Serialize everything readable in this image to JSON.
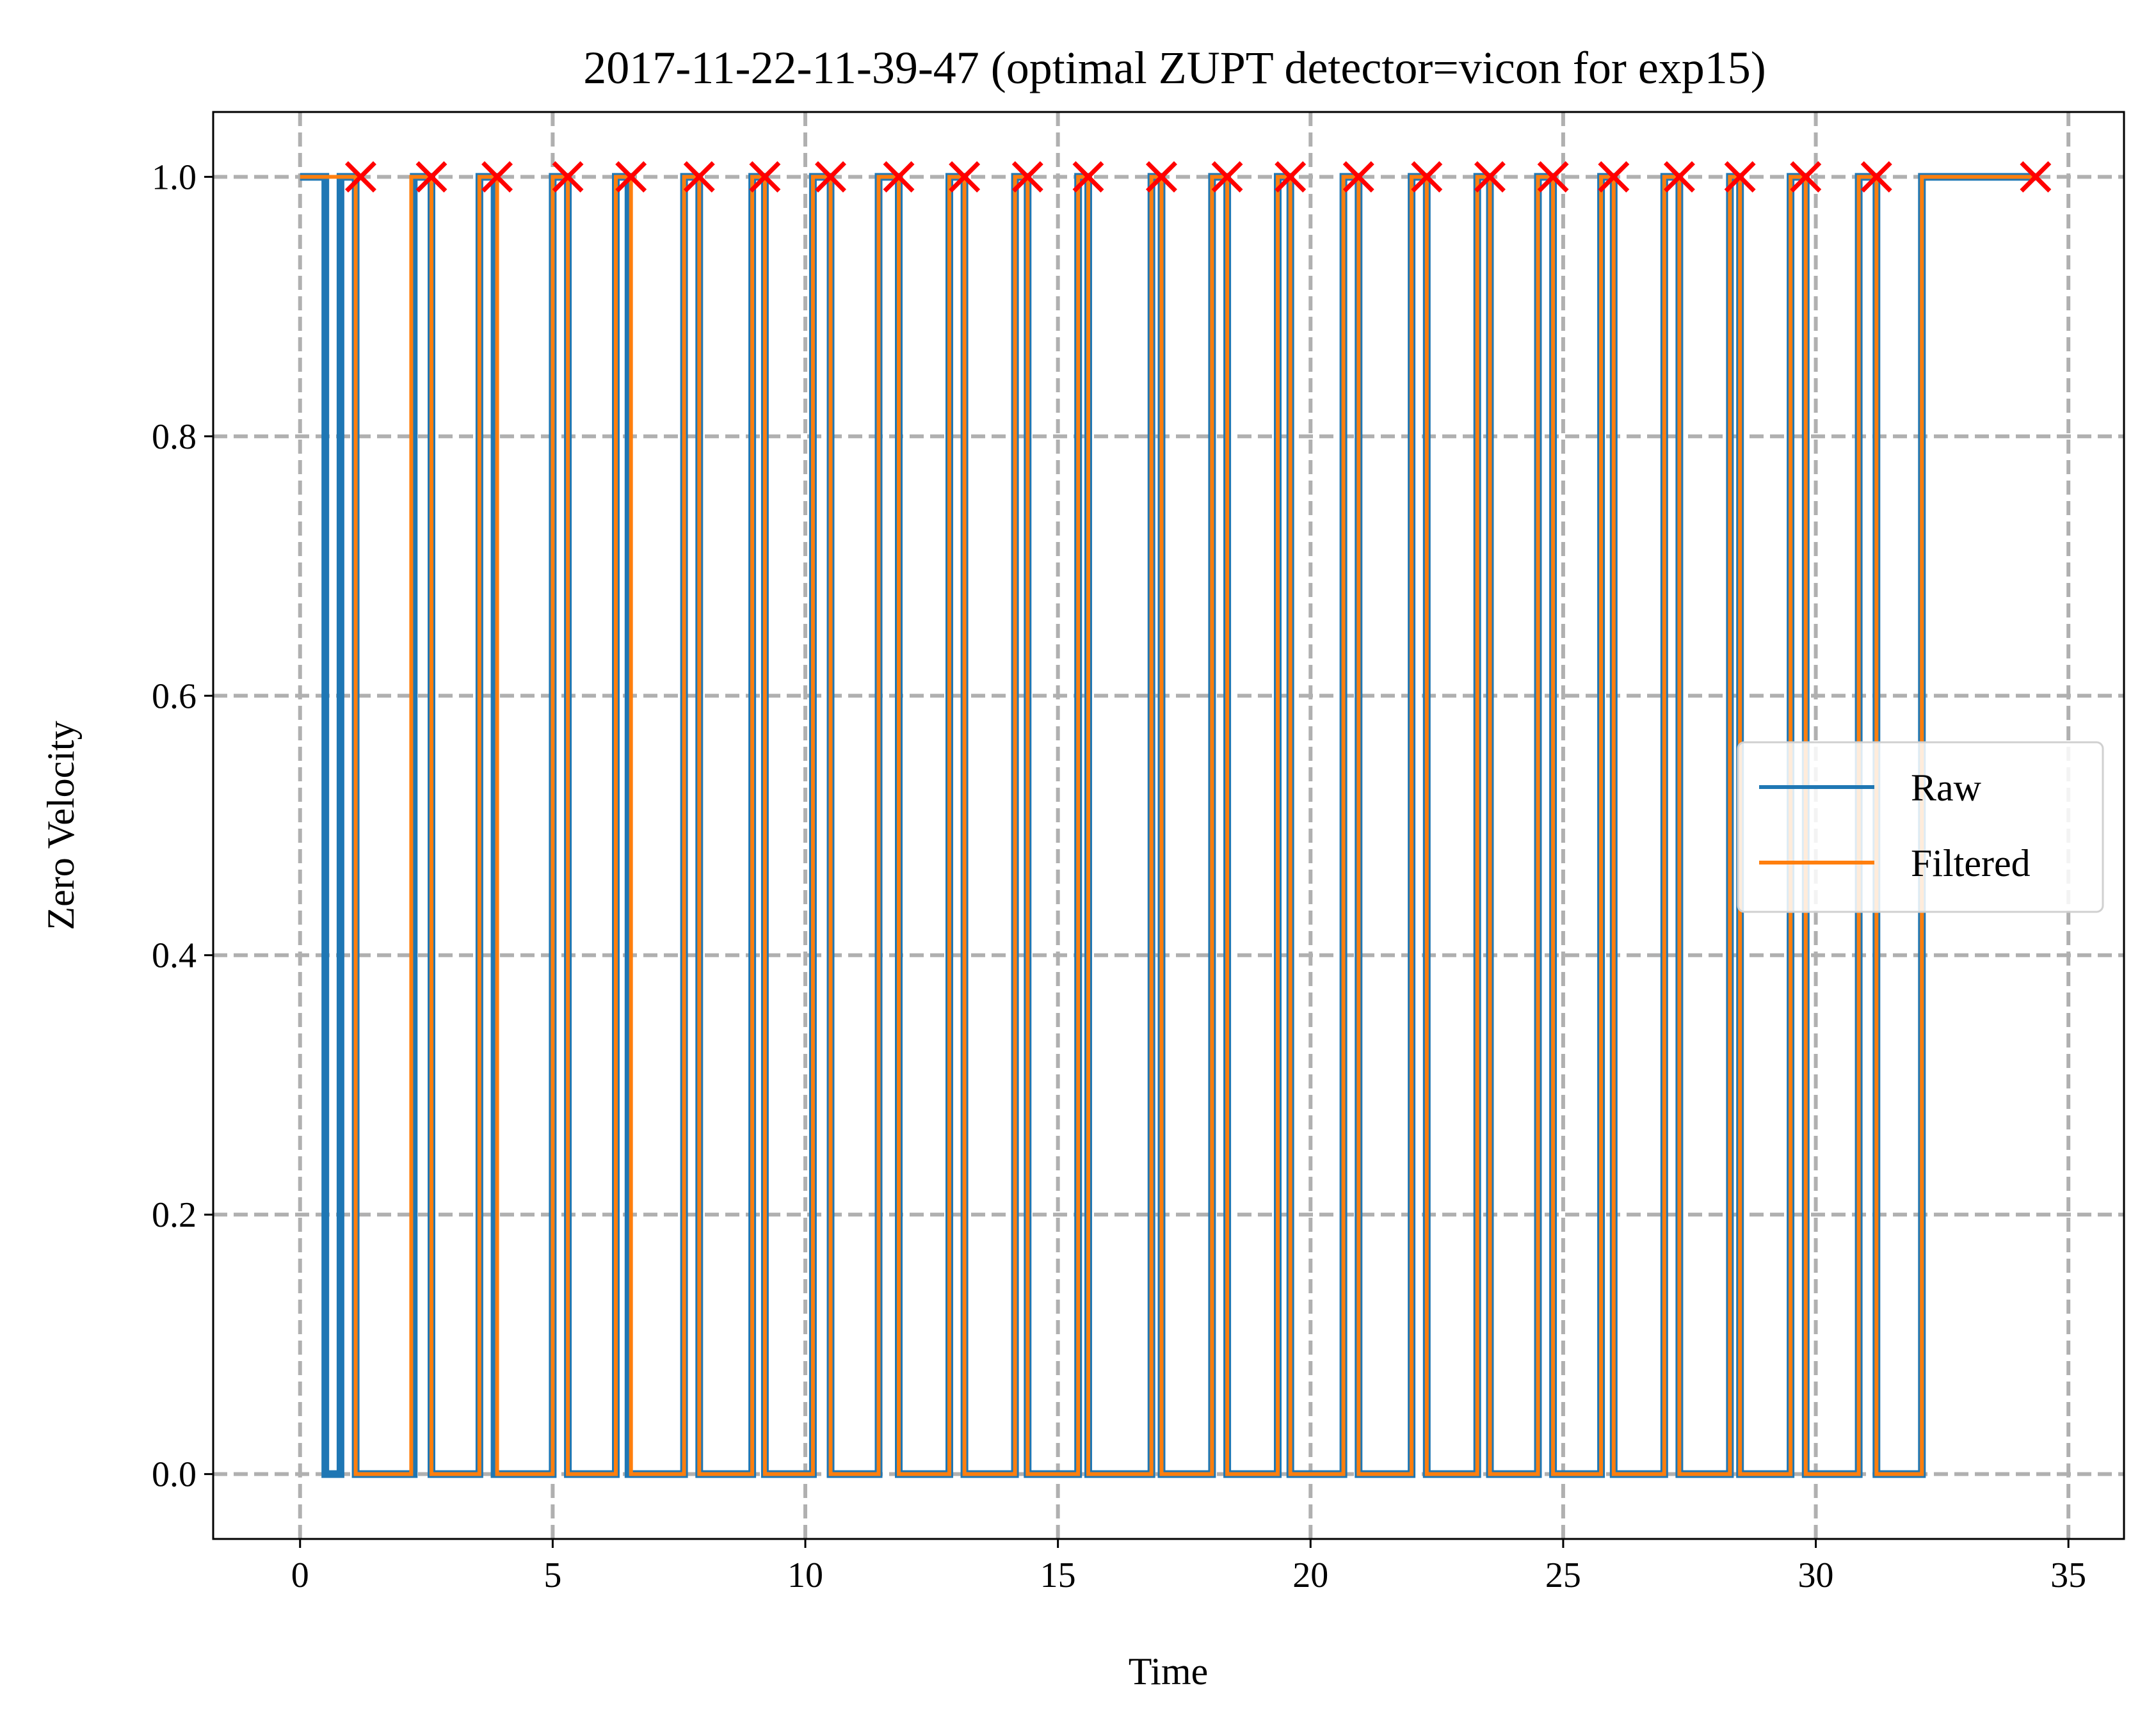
{
  "colors": {
    "raw": "#1f77b4",
    "filtered": "#ff7f0e",
    "marker": "#ff0000",
    "grid": "#b0b0b0",
    "axes": "#000000",
    "background": "#ffffff"
  },
  "chart_data": {
    "type": "line",
    "title": "2017-11-22-11-39-47 (optimal ZUPT detector=vicon for exp15)",
    "xlabel": "Time",
    "ylabel": "Zero Velocity",
    "xlim": [
      -1.72,
      36.1
    ],
    "ylim": [
      -0.05,
      1.05
    ],
    "x_ticks": [
      0,
      5,
      10,
      15,
      20,
      25,
      30,
      35
    ],
    "x_tick_labels": [
      "0",
      "5",
      "10",
      "15",
      "20",
      "25",
      "30",
      "35"
    ],
    "y_ticks": [
      0.0,
      0.2,
      0.4,
      0.6,
      0.8,
      1.0
    ],
    "y_tick_labels": [
      "0.0",
      "0.2",
      "0.4",
      "0.6",
      "0.8",
      "1.0"
    ],
    "grid": true,
    "grid_style": "dashed",
    "legend_position": "center-right",
    "series": [
      {
        "name": "Raw",
        "color_key": "raw",
        "x": [
          0.0,
          0.5,
          0.5,
          0.8,
          0.8,
          1.1,
          1.1,
          2.25,
          2.25,
          2.6,
          2.6,
          3.55,
          3.55,
          3.85,
          3.85,
          3.9,
          3.9,
          5.0,
          5.0,
          5.3,
          5.3,
          6.25,
          6.25,
          6.5,
          6.5,
          7.6,
          7.6,
          7.9,
          7.9,
          8.95,
          8.95,
          9.2,
          9.2,
          10.15,
          10.15,
          10.5,
          10.5,
          11.45,
          11.45,
          11.85,
          11.85,
          12.85,
          12.85,
          13.15,
          13.15,
          14.15,
          14.15,
          14.4,
          14.4,
          15.4,
          15.4,
          15.6,
          15.6,
          16.85,
          16.85,
          17.05,
          17.05,
          18.05,
          18.05,
          18.35,
          18.35,
          19.35,
          19.35,
          19.6,
          19.6,
          20.65,
          20.65,
          20.95,
          20.95,
          22.0,
          22.0,
          22.3,
          22.3,
          23.3,
          23.3,
          23.55,
          23.55,
          24.5,
          24.5,
          24.8,
          24.8,
          25.75,
          25.75,
          26.0,
          26.0,
          27.0,
          27.0,
          27.3,
          27.3,
          28.3,
          28.3,
          28.5,
          28.5,
          29.5,
          29.5,
          29.8,
          29.8,
          30.85,
          30.85,
          31.2,
          31.2,
          32.1,
          32.1,
          34.35
        ],
        "y": [
          1,
          1,
          0,
          0,
          1,
          1,
          0,
          0,
          1,
          1,
          0,
          0,
          1,
          1,
          0,
          0,
          0,
          0,
          1,
          1,
          0,
          0,
          1,
          1,
          0,
          0,
          1,
          1,
          0,
          0,
          1,
          1,
          0,
          0,
          1,
          1,
          0,
          0,
          1,
          1,
          0,
          0,
          1,
          1,
          0,
          0,
          1,
          1,
          0,
          0,
          1,
          1,
          0,
          0,
          1,
          1,
          0,
          0,
          1,
          1,
          0,
          0,
          1,
          1,
          0,
          0,
          1,
          1,
          0,
          0,
          1,
          1,
          0,
          0,
          1,
          1,
          0,
          0,
          1,
          1,
          0,
          0,
          1,
          1,
          0,
          0,
          1,
          1,
          0,
          0,
          1,
          1,
          0,
          0,
          1,
          1,
          0,
          0,
          1,
          1,
          0,
          0,
          1,
          1
        ]
      },
      {
        "name": "Filtered",
        "color_key": "filtered",
        "x": [
          0.0,
          1.1,
          1.1,
          2.2,
          2.2,
          2.6,
          2.6,
          3.55,
          3.55,
          3.9,
          3.9,
          5.0,
          5.0,
          5.3,
          5.3,
          6.25,
          6.25,
          6.55,
          6.55,
          7.6,
          7.6,
          7.9,
          7.9,
          8.95,
          8.95,
          9.2,
          9.2,
          10.15,
          10.15,
          10.5,
          10.5,
          11.45,
          11.45,
          11.85,
          11.85,
          12.85,
          12.85,
          13.15,
          13.15,
          14.15,
          14.15,
          14.4,
          14.4,
          15.4,
          15.4,
          15.6,
          15.6,
          16.85,
          16.85,
          17.05,
          17.05,
          18.05,
          18.05,
          18.35,
          18.35,
          19.35,
          19.35,
          19.6,
          19.6,
          20.65,
          20.65,
          20.95,
          20.95,
          22.0,
          22.0,
          22.3,
          22.3,
          23.3,
          23.3,
          23.55,
          23.55,
          24.5,
          24.5,
          24.8,
          24.8,
          25.75,
          25.75,
          26.0,
          26.0,
          27.0,
          27.0,
          27.3,
          27.3,
          28.3,
          28.3,
          28.5,
          28.5,
          29.5,
          29.5,
          29.8,
          29.8,
          30.85,
          30.85,
          31.2,
          31.2,
          32.1,
          32.1,
          34.35
        ],
        "y": [
          1,
          1,
          0,
          0,
          1,
          1,
          0,
          0,
          1,
          1,
          0,
          0,
          1,
          1,
          0,
          0,
          1,
          1,
          0,
          0,
          1,
          1,
          0,
          0,
          1,
          1,
          0,
          0,
          1,
          1,
          0,
          0,
          1,
          1,
          0,
          0,
          1,
          1,
          0,
          0,
          1,
          1,
          0,
          0,
          1,
          1,
          0,
          0,
          1,
          1,
          0,
          0,
          1,
          1,
          0,
          0,
          1,
          1,
          0,
          0,
          1,
          1,
          0,
          0,
          1,
          1,
          0,
          0,
          1,
          1,
          0,
          0,
          1,
          1,
          0,
          0,
          1,
          1,
          0,
          0,
          1,
          1,
          0,
          0,
          1,
          1,
          0,
          0,
          1,
          1,
          0,
          0,
          1,
          1,
          0,
          0,
          1,
          1
        ]
      }
    ],
    "markers": {
      "shape": "x",
      "color_key": "marker",
      "x": [
        1.2,
        2.6,
        3.9,
        5.3,
        6.55,
        7.9,
        9.2,
        10.5,
        11.85,
        13.15,
        14.4,
        15.6,
        17.05,
        18.35,
        19.6,
        20.95,
        22.3,
        23.55,
        24.8,
        26.0,
        27.3,
        28.5,
        29.8,
        31.2,
        34.35
      ],
      "y": [
        1,
        1,
        1,
        1,
        1,
        1,
        1,
        1,
        1,
        1,
        1,
        1,
        1,
        1,
        1,
        1,
        1,
        1,
        1,
        1,
        1,
        1,
        1,
        1,
        1
      ]
    }
  }
}
